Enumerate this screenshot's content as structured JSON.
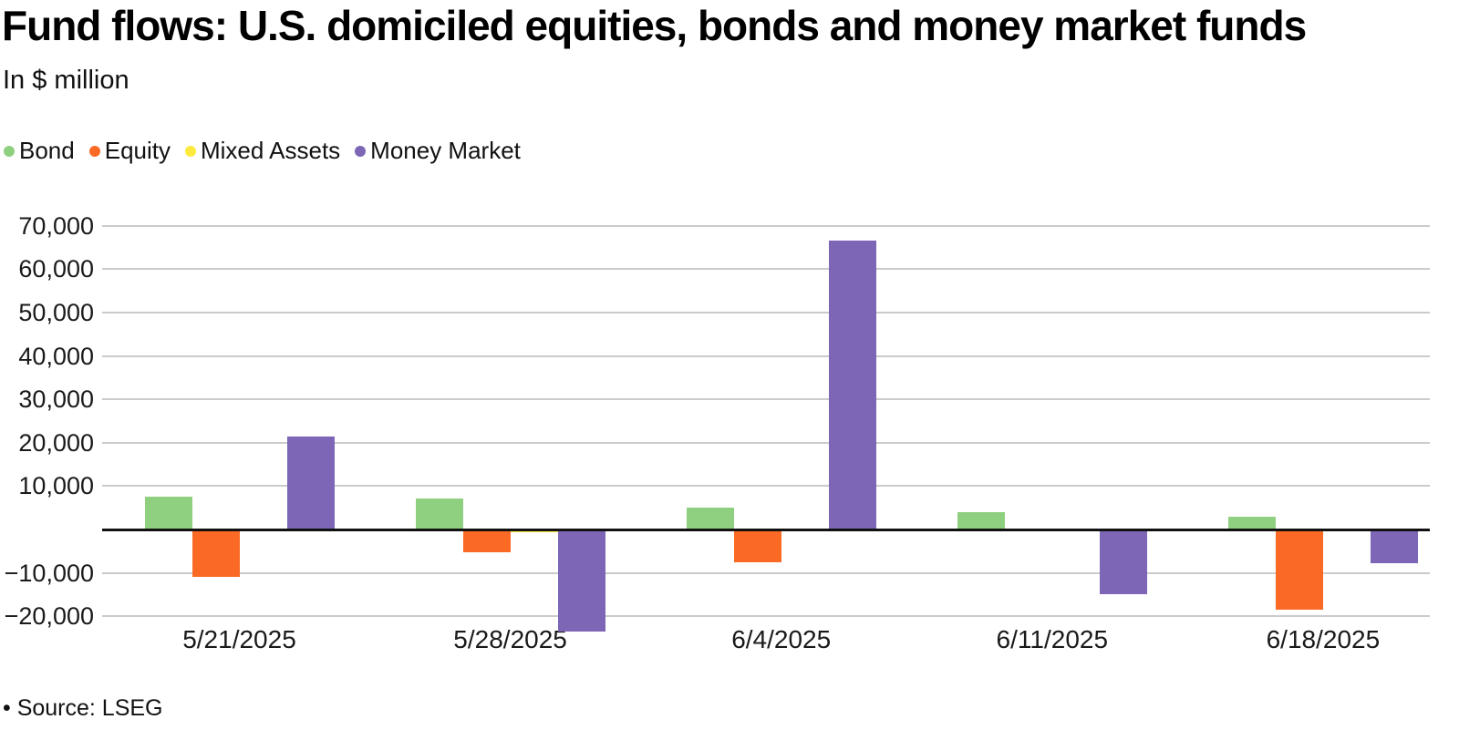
{
  "header": {
    "title": "Fund flows: U.S. domiciled equities, bonds and money market funds",
    "subtitle": "In $ million"
  },
  "footer": {
    "source": "• Source: LSEG"
  },
  "chart_data": {
    "type": "bar",
    "title": "Fund flows: U.S. domiciled equities, bonds and money market funds",
    "subtitle": "In $ million",
    "xlabel": "",
    "ylabel": "",
    "categories": [
      "5/21/2025",
      "5/28/2025",
      "6/4/2025",
      "6/11/2025",
      "6/18/2025"
    ],
    "series": [
      {
        "name": "Bond",
        "color": "#8FD080",
        "values": [
          7500,
          7200,
          5000,
          4000,
          2900
        ]
      },
      {
        "name": "Equity",
        "color": "#FB6A25",
        "values": [
          -10900,
          -5200,
          -7500,
          0,
          -18400
        ]
      },
      {
        "name": "Mixed Assets",
        "color": "#FFE93C",
        "values": [
          0,
          -600,
          -500,
          0,
          -400
        ]
      },
      {
        "name": "Money Market",
        "color": "#7C66B5",
        "values": [
          21400,
          -23500,
          66500,
          -15000,
          -7700
        ]
      }
    ],
    "ylim": [
      -25000,
      73000
    ],
    "yticks": [
      70000,
      60000,
      50000,
      40000,
      30000,
      20000,
      10000,
      -10000,
      -20000
    ],
    "grid": true,
    "zero_baseline": true,
    "legend_position": "top-left",
    "colors": {
      "gridline": "#cbcbcb",
      "axis": "#111111",
      "text": "#1a1a1a"
    }
  }
}
